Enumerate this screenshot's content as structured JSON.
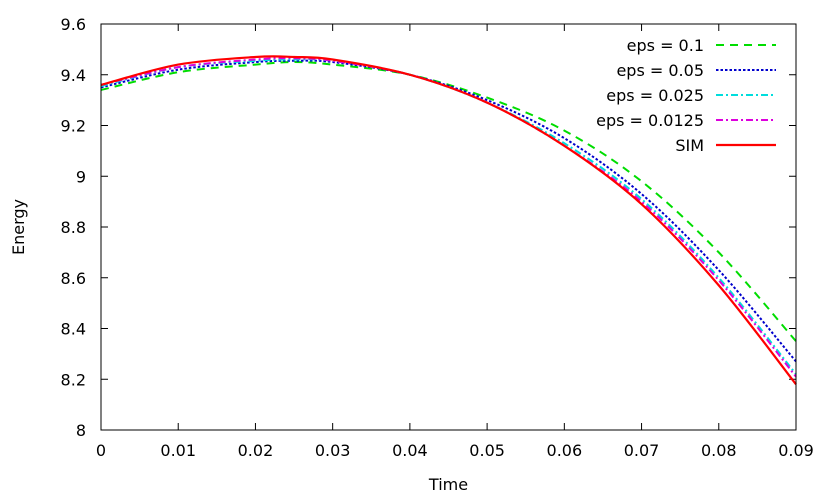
{
  "chart_data": {
    "type": "line",
    "xlabel": "Time",
    "ylabel": "Energy",
    "xlim": [
      0,
      0.09
    ],
    "ylim": [
      8,
      9.6
    ],
    "xticks": [
      "0",
      "0.01",
      "0.02",
      "0.03",
      "0.04",
      "0.05",
      "0.06",
      "0.07",
      "0.08",
      "0.09"
    ],
    "yticks": [
      "8",
      "8.2",
      "8.4",
      "8.6",
      "8.8",
      "9",
      "9.2",
      "9.4",
      "9.6"
    ],
    "grid": false,
    "legend_position": "top-right",
    "series": [
      {
        "name": "eps = 0.1",
        "color": "#00dd00",
        "dash": "dashed",
        "x": [
          0,
          0.01,
          0.02,
          0.025,
          0.03,
          0.04,
          0.05,
          0.06,
          0.07,
          0.08,
          0.09
        ],
        "y": [
          9.34,
          9.41,
          9.44,
          9.45,
          9.44,
          9.4,
          9.31,
          9.18,
          8.98,
          8.7,
          8.35
        ]
      },
      {
        "name": "eps = 0.05",
        "color": "#0000cc",
        "dash": "dotted",
        "x": [
          0,
          0.01,
          0.02,
          0.025,
          0.03,
          0.04,
          0.05,
          0.06,
          0.07,
          0.08,
          0.09
        ],
        "y": [
          9.35,
          9.42,
          9.45,
          9.455,
          9.45,
          9.4,
          9.3,
          9.15,
          8.93,
          8.63,
          8.27
        ]
      },
      {
        "name": "eps = 0.025",
        "color": "#00dddd",
        "dash": "dash-dot",
        "x": [
          0,
          0.01,
          0.02,
          0.025,
          0.03,
          0.04,
          0.05,
          0.06,
          0.07,
          0.08,
          0.09
        ],
        "y": [
          9.355,
          9.43,
          9.455,
          9.46,
          9.455,
          9.4,
          9.29,
          9.13,
          8.91,
          8.6,
          8.22
        ]
      },
      {
        "name": "eps = 0.0125",
        "color": "#dd00dd",
        "dash": "dash-dot",
        "x": [
          0,
          0.01,
          0.02,
          0.025,
          0.03,
          0.04,
          0.05,
          0.06,
          0.07,
          0.08,
          0.09
        ],
        "y": [
          9.36,
          9.43,
          9.46,
          9.465,
          9.455,
          9.4,
          9.29,
          9.12,
          8.9,
          8.59,
          8.21
        ]
      },
      {
        "name": "SIM",
        "color": "#ff0000",
        "dash": "solid",
        "x": [
          0,
          0.01,
          0.02,
          0.025,
          0.03,
          0.04,
          0.05,
          0.06,
          0.07,
          0.08,
          0.09
        ],
        "y": [
          9.36,
          9.44,
          9.47,
          9.47,
          9.46,
          9.4,
          9.29,
          9.12,
          8.89,
          8.57,
          8.18
        ]
      }
    ]
  }
}
